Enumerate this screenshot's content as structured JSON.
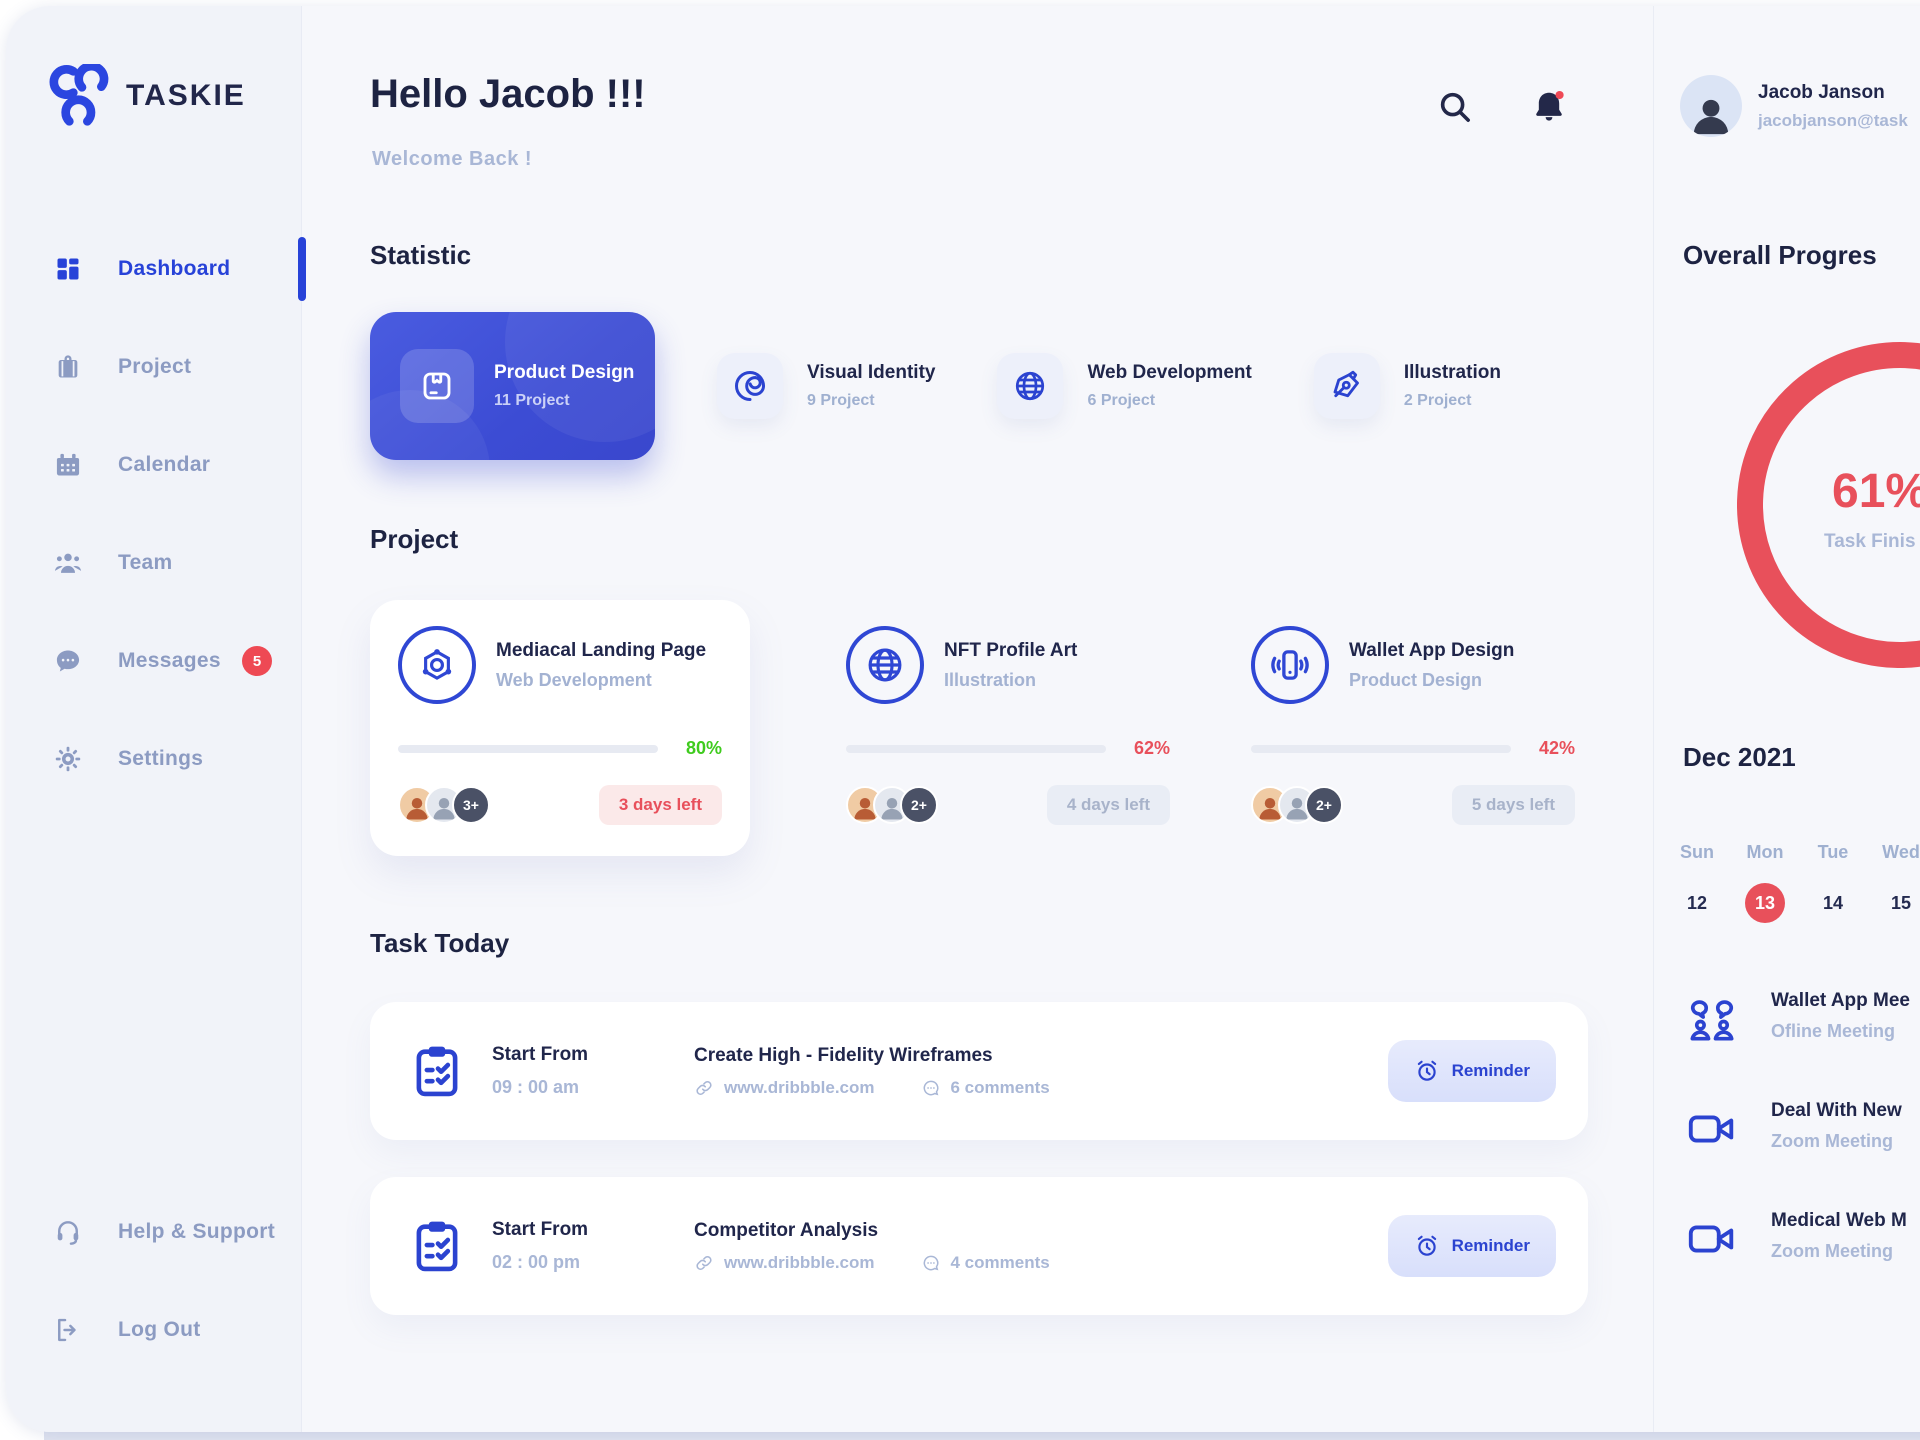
{
  "brand": {
    "name": "TASKIE"
  },
  "header": {
    "greeting": "Hello Jacob !!!",
    "subtitle": "Welcome Back !"
  },
  "sidebar": {
    "items": [
      {
        "label": "Dashboard",
        "icon": "grid",
        "active": true
      },
      {
        "label": "Project",
        "icon": "briefcase",
        "active": false
      },
      {
        "label": "Calendar",
        "icon": "calendar",
        "active": false
      },
      {
        "label": "Team",
        "icon": "team",
        "active": false
      },
      {
        "label": "Messages",
        "icon": "chat",
        "active": false,
        "badge": "5"
      },
      {
        "label": "Settings",
        "icon": "gear",
        "active": false
      }
    ],
    "footer": [
      {
        "label": "Help & Support",
        "icon": "headset"
      },
      {
        "label": "Log Out",
        "icon": "logout"
      }
    ]
  },
  "statistic": {
    "title": "Statistic",
    "cards": [
      {
        "label": "Product Design",
        "count": "11 Project",
        "icon": "product",
        "highlight": true
      },
      {
        "label": "Visual Identity",
        "count": "9 Project",
        "icon": "swirl",
        "highlight": false
      },
      {
        "label": "Web Development",
        "count": "6 Project",
        "icon": "globe",
        "highlight": false
      },
      {
        "label": "Illustration",
        "count": "2 Project",
        "icon": "pennib",
        "highlight": false
      }
    ]
  },
  "projects": {
    "title": "Project",
    "cards": [
      {
        "name": "Mediacal Landing Page",
        "category": "Web Development",
        "icon": "molecule",
        "progress": 80,
        "progress_label": "80%",
        "progress_color": "#3fcb1e",
        "days_left": "3 days left",
        "urgent": true,
        "extra": "3+",
        "elevated": true
      },
      {
        "name": "NFT Profile Art",
        "category": "Illustration",
        "icon": "globe",
        "progress": 62,
        "progress_label": "62%",
        "progress_color": "#e8505b",
        "days_left": "4 days left",
        "urgent": false,
        "extra": "2+",
        "elevated": false
      },
      {
        "name": "Wallet App Design",
        "category": "Product Design",
        "icon": "phone",
        "progress": 42,
        "progress_label": "42%",
        "progress_color": "#e8505b",
        "days_left": "5 days left",
        "urgent": false,
        "extra": "2+",
        "elevated": false
      }
    ]
  },
  "tasks": {
    "title": "Task Today",
    "rows": [
      {
        "start_label": "Start From",
        "time": "09 : 00 am",
        "name": "Create High - Fidelity Wireframes",
        "link": "www.dribbble.com",
        "comments": "6 comments",
        "action": "Reminder"
      },
      {
        "start_label": "Start From",
        "time": "02 : 00 pm",
        "name": "Competitor Analysis",
        "link": "www.dribbble.com",
        "comments": "4 comments",
        "action": "Reminder"
      }
    ]
  },
  "profile": {
    "name": "Jacob Janson",
    "email": "jacobjanson@task"
  },
  "overall": {
    "title": "Overall Progres",
    "value": 61,
    "percent": "61%",
    "caption": "Task Finis"
  },
  "calendar": {
    "month": "Dec 2021",
    "days": [
      "Sun",
      "Mon",
      "Tue",
      "Wed"
    ],
    "dates": [
      "12",
      "13",
      "14",
      "15"
    ],
    "selected": "13"
  },
  "meetings": [
    {
      "title": "Wallet App Mee",
      "subtitle": "Ofline Meeting",
      "icon": "people"
    },
    {
      "title": "Deal With New",
      "subtitle": "Zoom Meeting",
      "icon": "video"
    },
    {
      "title": "Medical Web M",
      "subtitle": "Zoom Meeting",
      "icon": "video"
    }
  ],
  "colors": {
    "accent": "#2b43d0",
    "accent_deep": "#4152da",
    "danger": "#e8505b",
    "success": "#3fcb1e",
    "badge_red": "#ee4954",
    "muted": "#a9b7d6"
  }
}
